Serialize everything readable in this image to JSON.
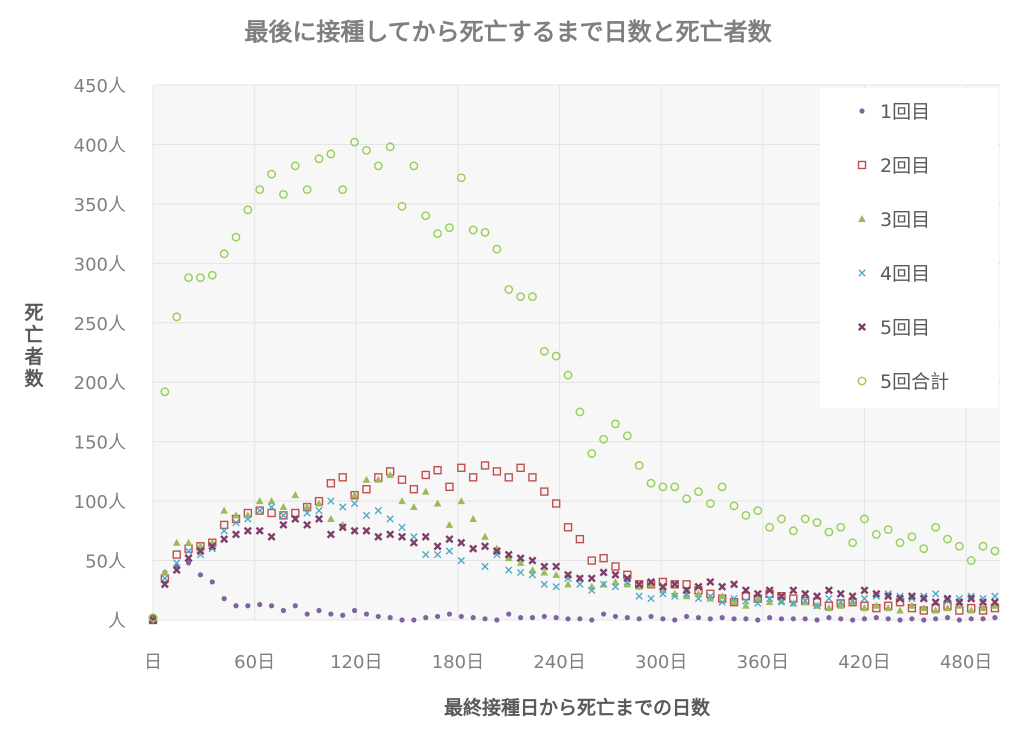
{
  "chart_data": {
    "type": "scatter",
    "title": "最後に接種してから死亡するまで日数と死亡者数",
    "xlabel": "最終接種日から死亡までの日数",
    "ylabel": "死亡者数",
    "xlim": [
      0,
      500
    ],
    "ylim": [
      0,
      450
    ],
    "x_ticks": [
      0,
      60,
      120,
      180,
      240,
      300,
      360,
      420,
      480
    ],
    "x_tick_labels": [
      "日",
      "60日",
      "120日",
      "180日",
      "240日",
      "300日",
      "360日",
      "420日",
      "480日"
    ],
    "y_ticks": [
      0,
      50,
      100,
      150,
      200,
      250,
      300,
      350,
      400,
      450
    ],
    "y_tick_labels": [
      "人",
      "50人",
      "100人",
      "150人",
      "200人",
      "250人",
      "300人",
      "350人",
      "400人",
      "450人"
    ],
    "grid": true,
    "legend_position": "top-right",
    "x": [
      0,
      7,
      14,
      21,
      28,
      35,
      42,
      49,
      56,
      63,
      70,
      77,
      84,
      91,
      98,
      105,
      112,
      119,
      126,
      133,
      140,
      147,
      154,
      161,
      168,
      175,
      182,
      189,
      196,
      203,
      210,
      217,
      224,
      231,
      238,
      245,
      252,
      259,
      266,
      273,
      280,
      287,
      294,
      301,
      308,
      315,
      322,
      329,
      336,
      343,
      350,
      357,
      364,
      371,
      378,
      385,
      392,
      399,
      406,
      413,
      420,
      427,
      434,
      441,
      448,
      455,
      462,
      469,
      476,
      483,
      490,
      497
    ],
    "series": [
      {
        "name": "1回目",
        "marker": "dot",
        "color": "#8064a2",
        "values": [
          3,
          40,
          45,
          48,
          38,
          32,
          18,
          12,
          12,
          13,
          12,
          8,
          12,
          5,
          8,
          5,
          4,
          8,
          5,
          3,
          2,
          0,
          0,
          2,
          3,
          5,
          3,
          2,
          1,
          0,
          5,
          2,
          2,
          3,
          2,
          1,
          1,
          0,
          5,
          3,
          2,
          1,
          3,
          1,
          0,
          3,
          2,
          1,
          2,
          1,
          1,
          0,
          2,
          1,
          1,
          1,
          0,
          2,
          1,
          0,
          1,
          2,
          1,
          0,
          1,
          0,
          1,
          2,
          0,
          1,
          1,
          2
        ]
      },
      {
        "name": "2回目",
        "marker": "square",
        "color": "#c0504d",
        "values": [
          0,
          35,
          55,
          60,
          62,
          65,
          80,
          85,
          90,
          92,
          90,
          88,
          90,
          95,
          100,
          115,
          120,
          105,
          110,
          120,
          125,
          118,
          110,
          122,
          126,
          112,
          128,
          120,
          130,
          125,
          120,
          128,
          120,
          108,
          98,
          78,
          68,
          50,
          52,
          45,
          38,
          30,
          30,
          32,
          30,
          30,
          25,
          22,
          18,
          15,
          20,
          18,
          22,
          20,
          18,
          16,
          15,
          12,
          14,
          15,
          12,
          10,
          12,
          15,
          10,
          8,
          10,
          12,
          8,
          10,
          8,
          10
        ]
      },
      {
        "name": "3回目",
        "marker": "triangle",
        "color": "#9bbb59",
        "values": [
          0,
          40,
          65,
          65,
          62,
          65,
          92,
          88,
          88,
          100,
          100,
          95,
          105,
          95,
          98,
          85,
          80,
          105,
          118,
          118,
          122,
          100,
          95,
          108,
          98,
          80,
          100,
          85,
          70,
          60,
          52,
          48,
          42,
          40,
          38,
          30,
          35,
          28,
          30,
          32,
          30,
          28,
          30,
          25,
          22,
          20,
          22,
          18,
          20,
          15,
          12,
          18,
          15,
          16,
          14,
          15,
          12,
          10,
          12,
          15,
          10,
          12,
          10,
          8,
          12,
          10,
          8,
          10,
          12,
          8,
          10,
          12
        ]
      },
      {
        "name": "4回目",
        "marker": "x",
        "color": "#4bacc6",
        "values": [
          0,
          35,
          48,
          58,
          55,
          60,
          75,
          82,
          85,
          92,
          95,
          88,
          85,
          90,
          92,
          100,
          95,
          98,
          88,
          92,
          85,
          78,
          70,
          55,
          55,
          58,
          50,
          60,
          45,
          55,
          42,
          40,
          38,
          30,
          28,
          35,
          30,
          25,
          30,
          28,
          32,
          20,
          18,
          22,
          20,
          22,
          18,
          20,
          15,
          18,
          16,
          14,
          18,
          15,
          14,
          16,
          12,
          18,
          15,
          16,
          18,
          20,
          22,
          20,
          18,
          20,
          22,
          16,
          18,
          20,
          18,
          20
        ]
      },
      {
        "name": "5回目",
        "marker": "x-bold",
        "color": "#7f3d6a",
        "values": [
          0,
          30,
          42,
          52,
          58,
          62,
          68,
          72,
          75,
          75,
          70,
          80,
          85,
          80,
          85,
          72,
          78,
          75,
          75,
          70,
          72,
          70,
          65,
          70,
          62,
          68,
          65,
          60,
          62,
          58,
          55,
          52,
          50,
          45,
          45,
          38,
          35,
          35,
          40,
          38,
          35,
          30,
          32,
          28,
          30,
          25,
          28,
          32,
          28,
          30,
          25,
          22,
          25,
          20,
          25,
          22,
          20,
          25,
          22,
          20,
          25,
          22,
          20,
          18,
          20,
          18,
          15,
          18,
          15,
          18,
          15,
          15
        ]
      },
      {
        "name": "5回合計",
        "marker": "circle",
        "color": "#92d050",
        "values": [
          2,
          192,
          255,
          288,
          288,
          290,
          308,
          322,
          345,
          362,
          375,
          358,
          382,
          362,
          388,
          392,
          362,
          402,
          395,
          382,
          398,
          348,
          382,
          340,
          325,
          330,
          372,
          328,
          326,
          312,
          278,
          272,
          272,
          226,
          222,
          206,
          175,
          140,
          152,
          165,
          155,
          130,
          115,
          112,
          112,
          102,
          108,
          98,
          112,
          96,
          88,
          92,
          78,
          85,
          75,
          85,
          82,
          74,
          78,
          65,
          85,
          72,
          76,
          65,
          70,
          60,
          78,
          68,
          62,
          50,
          62,
          58
        ]
      }
    ]
  }
}
